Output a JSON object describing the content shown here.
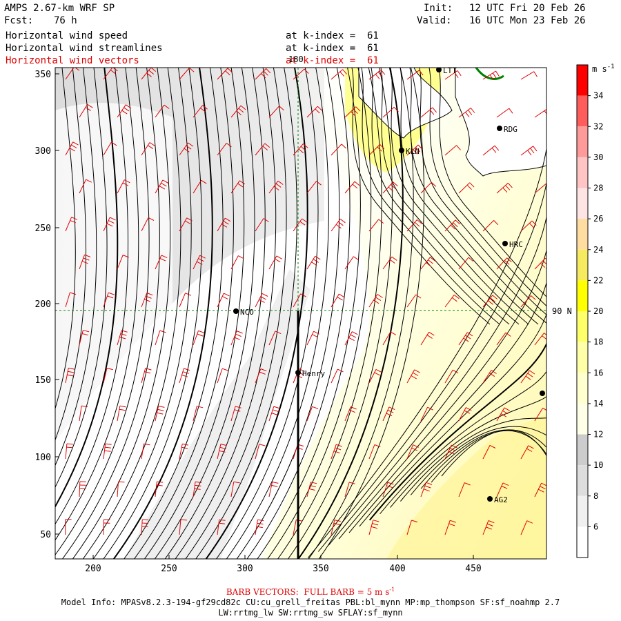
{
  "header": {
    "model_title": "AMPS 2.67-km WRF SP",
    "forecast_label": "Fcst:",
    "forecast_value": "76 h",
    "init_label": "Init:",
    "init_value": "12 UTC Fri 20 Feb 26",
    "valid_label": "Valid:",
    "valid_value": "16 UTC Mon 23 Feb 26"
  },
  "fields": [
    {
      "name": "Horizontal wind speed",
      "level": "at k-index =  61",
      "color": "#000000"
    },
    {
      "name": "Horizontal wind streamlines",
      "level": "at k-index =  61",
      "color": "#000000"
    },
    {
      "name": "Horizontal wind vectors",
      "level": "at k-index =  61",
      "color": "#e00000"
    }
  ],
  "map": {
    "x_ticks": [
      "200",
      "250",
      "300",
      "350",
      "400",
      "450"
    ],
    "y_ticks": [
      "350",
      "300",
      "250",
      "200",
      "150",
      "100",
      "50"
    ],
    "meridian_label": "180",
    "parallel_label": "90 N",
    "stations": [
      {
        "label": "LTT"
      },
      {
        "label": "RDG"
      },
      {
        "label": "KLN"
      },
      {
        "label": "HRC"
      },
      {
        "label": "NCO"
      },
      {
        "label": "Henry"
      },
      {
        "label": "AG2"
      },
      {
        "label": ""
      }
    ]
  },
  "colorbar": {
    "unit_label": "m s",
    "unit_exponent": "-1",
    "levels": [
      "34",
      "32",
      "30",
      "28",
      "26",
      "24",
      "22",
      "20",
      "18",
      "16",
      "14",
      "12",
      "10",
      "8",
      "6"
    ],
    "colors": [
      "#ff0000",
      "#ff5c5c",
      "#ff9a9a",
      "#ffc4c4",
      "#ffe4e4",
      "#ffdca0",
      "#f5ea60",
      "#ffff00",
      "#ffff6a",
      "#ffffa8",
      "#ffffd0",
      "#ffffe8",
      "#cccccc",
      "#dddddd",
      "#f0f0f0",
      "#ffffff"
    ]
  },
  "footer": {
    "barb_text": "BARB VECTORS:  FULL BARB = 5 m s",
    "barb_exponent": "-1",
    "model_info_line1": "Model Info: MPASv8.2.3-194-gf29cd82c CU:cu_grell_freitas PBL:bl_mynn MP:mp_thompson SF:sf_noahmp 2.7",
    "model_info_line2": "LW:rrtmg_lw SW:rrtmg_sw SFLAY:sf_mynn"
  }
}
